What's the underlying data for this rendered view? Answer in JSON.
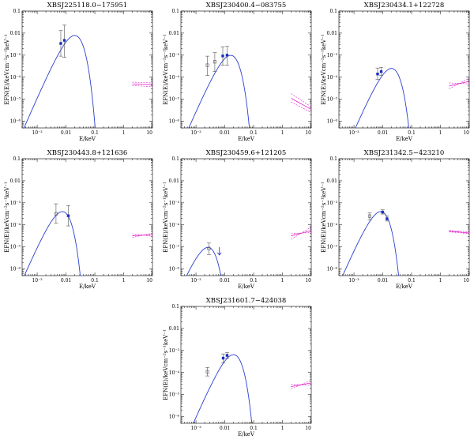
{
  "figure": {
    "ylabel": "EFN(E)/keVcm⁻²s⁻¹keV⁻¹",
    "xlabel": "E/keV",
    "x_ticks": [
      "10⁻³",
      "0.01",
      "0.1",
      "1",
      "10"
    ],
    "y_ticks": [
      "10⁻⁶",
      "10⁻⁵",
      "10⁻⁴",
      "10⁻³",
      "0.01",
      "0.1"
    ],
    "colors": {
      "model": "#2a3fd0",
      "xray": "#e020c8",
      "points": "#1a2ec0",
      "errors": "#555555"
    }
  },
  "chart_data": [
    {
      "type": "scatter",
      "title": "XBSJ225118.0−175951",
      "xscale": "log",
      "yscale": "log",
      "xlim": [
        0.0003,
        10
      ],
      "ylim": [
        5e-07,
        0.1
      ],
      "xlabel": "E/keV",
      "ylabel": "EFN(E)/keVcm⁻²s⁻¹keV⁻¹",
      "points": [
        {
          "x": 0.0066,
          "y": 0.0034,
          "err_lo": 0.0009,
          "err_hi": 0.013,
          "filled": true
        },
        {
          "x": 0.0088,
          "y": 0.0047,
          "err_lo": 0.0008,
          "err_hi": 0.023,
          "filled": true
        }
      ],
      "model": {
        "type": "blackbody",
        "peak_x": 0.02,
        "peak_y": 0.0078,
        "x_start": 0.0003,
        "x_end": 0.16
      },
      "xray": {
        "x": [
          2.0,
          10.0
        ],
        "y": [
          5e-05,
          4.5e-05
        ],
        "band": [
          [
            6e-05,
            5.5e-05
          ],
          [
            4.2e-05,
            3.7e-05
          ]
        ]
      }
    },
    {
      "type": "scatter",
      "title": "XBSJ230400.4−083755",
      "xscale": "log",
      "yscale": "log",
      "xlim": [
        0.0003,
        10
      ],
      "ylim": [
        5e-07,
        0.1
      ],
      "xlabel": "E/keV",
      "ylabel": "EFN(E)/keVcm⁻²s⁻¹keV⁻¹",
      "points": [
        {
          "x": 0.0025,
          "y": 0.00035,
          "err_lo": 0.00012,
          "err_hi": 0.0009,
          "filled": false
        },
        {
          "x": 0.0045,
          "y": 0.0005,
          "err_lo": 0.00018,
          "err_hi": 0.0013,
          "filled": false
        },
        {
          "x": 0.0085,
          "y": 0.00092,
          "err_lo": 0.00035,
          "err_hi": 0.0024,
          "filled": true
        },
        {
          "x": 0.012,
          "y": 0.001,
          "err_lo": 0.00035,
          "err_hi": 0.0025,
          "filled": true
        }
      ],
      "model": {
        "type": "blackbody",
        "peak_x": 0.016,
        "peak_y": 0.00098,
        "x_start": 0.0003,
        "x_end": 0.09
      },
      "xray": {
        "x": [
          2.0,
          10.0
        ],
        "y": [
          1.1e-05,
          3.5e-06
        ],
        "band": [
          [
            1.8e-05,
            4.5e-06
          ],
          [
            7.5e-06,
            2.5e-06
          ]
        ]
      }
    },
    {
      "type": "scatter",
      "title": "XBSJ230434.1+122728",
      "xscale": "log",
      "yscale": "log",
      "xlim": [
        0.0003,
        10
      ],
      "ylim": [
        5e-07,
        0.1
      ],
      "xlabel": "E/keV",
      "ylabel": "EFN(E)/keVcm⁻²s⁻¹keV⁻¹",
      "points": [
        {
          "x": 0.0066,
          "y": 0.00014,
          "err_lo": 8e-05,
          "err_hi": 0.00026,
          "filled": true
        },
        {
          "x": 0.0088,
          "y": 0.00018,
          "err_lo": 0.00012,
          "err_hi": 0.00028,
          "filled": true
        }
      ],
      "model": {
        "type": "blackbody",
        "peak_x": 0.02,
        "peak_y": 0.00025,
        "x_start": 0.0003,
        "x_end": 0.12
      },
      "xray": {
        "x": [
          2.0,
          10.0
        ],
        "y": [
          4e-05,
          6.5e-05
        ],
        "band": [
          [
            3e-05,
            9e-05
          ],
          [
            5.5e-05,
            5e-05
          ]
        ]
      }
    },
    {
      "type": "scatter",
      "title": "XBSJ230443.8+121636",
      "xscale": "log",
      "yscale": "log",
      "xlim": [
        0.0003,
        10
      ],
      "ylim": [
        5e-07,
        0.1
      ],
      "xlabel": "E/keV",
      "ylabel": "EFN(E)/keVcm⁻²s⁻¹keV⁻¹",
      "points": [
        {
          "x": 0.0045,
          "y": 0.00032,
          "err_lo": 0.00012,
          "err_hi": 0.0009,
          "filled": false
        },
        {
          "x": 0.012,
          "y": 0.00026,
          "err_lo": 9e-05,
          "err_hi": 0.00075,
          "filled": true
        }
      ],
      "model": {
        "type": "blackbody",
        "peak_x": 0.0075,
        "peak_y": 0.0004,
        "x_start": 0.0003,
        "x_end": 0.048
      },
      "xray": {
        "x": [
          2.0,
          10.0
        ],
        "y": [
          3.2e-05,
          3.6e-05
        ],
        "band": [
          [
            4e-05,
            3e-05
          ],
          [
            2.7e-05,
            4.2e-05
          ]
        ]
      }
    },
    {
      "type": "scatter",
      "title": "XBSJ230459.6+121205",
      "xscale": "log",
      "yscale": "log",
      "xlim": [
        0.0003,
        10
      ],
      "ylim": [
        5e-07,
        0.1
      ],
      "xlabel": "E/keV",
      "ylabel": "EFN(E)/keVcm⁻²s⁻¹keV⁻¹",
      "points": [
        {
          "x": 0.0028,
          "y": 8.5e-06,
          "err_lo": 4.5e-06,
          "err_hi": 1.5e-05,
          "filled": false
        }
      ],
      "upper_limits": [
        {
          "x": 0.0065,
          "y": 6e-06
        }
      ],
      "model": {
        "type": "blackbody",
        "peak_x": 0.0026,
        "peak_y": 9.5e-06,
        "x_start": 0.0003,
        "x_end": 0.016
      },
      "xray": {
        "x": [
          2.0,
          10.0
        ],
        "y": [
          3.2e-05,
          5.5e-05
        ],
        "band": [
          [
            2.2e-05,
            8e-05
          ],
          [
            4e-05,
            4.5e-05
          ]
        ]
      }
    },
    {
      "type": "scatter",
      "title": "XBSJ231342.5−423210",
      "xscale": "log",
      "yscale": "log",
      "xlim": [
        0.0003,
        10
      ],
      "ylim": [
        5e-07,
        0.1
      ],
      "xlabel": "E/keV",
      "ylabel": "EFN(E)/keVcm⁻²s⁻¹keV⁻¹",
      "points": [
        {
          "x": 0.0035,
          "y": 0.00025,
          "err_lo": 0.00017,
          "err_hi": 0.00035,
          "filled": false
        },
        {
          "x": 0.0098,
          "y": 0.00038,
          "err_lo": 0.00031,
          "err_hi": 0.00048,
          "filled": true
        },
        {
          "x": 0.014,
          "y": 0.00019,
          "err_lo": 0.00015,
          "err_hi": 0.00025,
          "filled": true
        }
      ],
      "model": {
        "type": "blackbody",
        "peak_x": 0.0085,
        "peak_y": 0.0004,
        "x_start": 0.0003,
        "x_end": 0.045
      },
      "xray": {
        "x": [
          2.0,
          10.0
        ],
        "y": [
          5.2e-05,
          4.3e-05
        ],
        "band": [
          [
            5.6e-05,
            4.7e-05
          ],
          [
            4.8e-05,
            4e-05
          ]
        ]
      }
    },
    {
      "type": "scatter",
      "title": "XBSJ231601.7−424038",
      "xscale": "log",
      "yscale": "log",
      "xlim": [
        0.0003,
        10
      ],
      "ylim": [
        5e-07,
        0.1
      ],
      "xlabel": "E/keV",
      "ylabel": "EFN(E)/keVcm⁻²s⁻¹keV⁻¹",
      "points": [
        {
          "x": 0.0025,
          "y": 0.00011,
          "err_lo": 7e-05,
          "err_hi": 0.00017,
          "filled": false
        },
        {
          "x": 0.0088,
          "y": 0.00045,
          "err_lo": 0.00028,
          "err_hi": 0.0007,
          "filled": true
        },
        {
          "x": 0.012,
          "y": 0.0006,
          "err_lo": 0.00045,
          "err_hi": 0.0008,
          "filled": true
        }
      ],
      "model": {
        "type": "blackbody",
        "peak_x": 0.02,
        "peak_y": 0.00065,
        "x_start": 0.0003,
        "x_end": 0.13
      },
      "xray": {
        "x": [
          2.0,
          10.0
        ],
        "y": [
          2.3e-05,
          3.4e-05
        ],
        "band": [
          [
            1.8e-05,
            4.5e-05
          ],
          [
            3e-05,
            2.6e-05
          ]
        ]
      }
    }
  ]
}
